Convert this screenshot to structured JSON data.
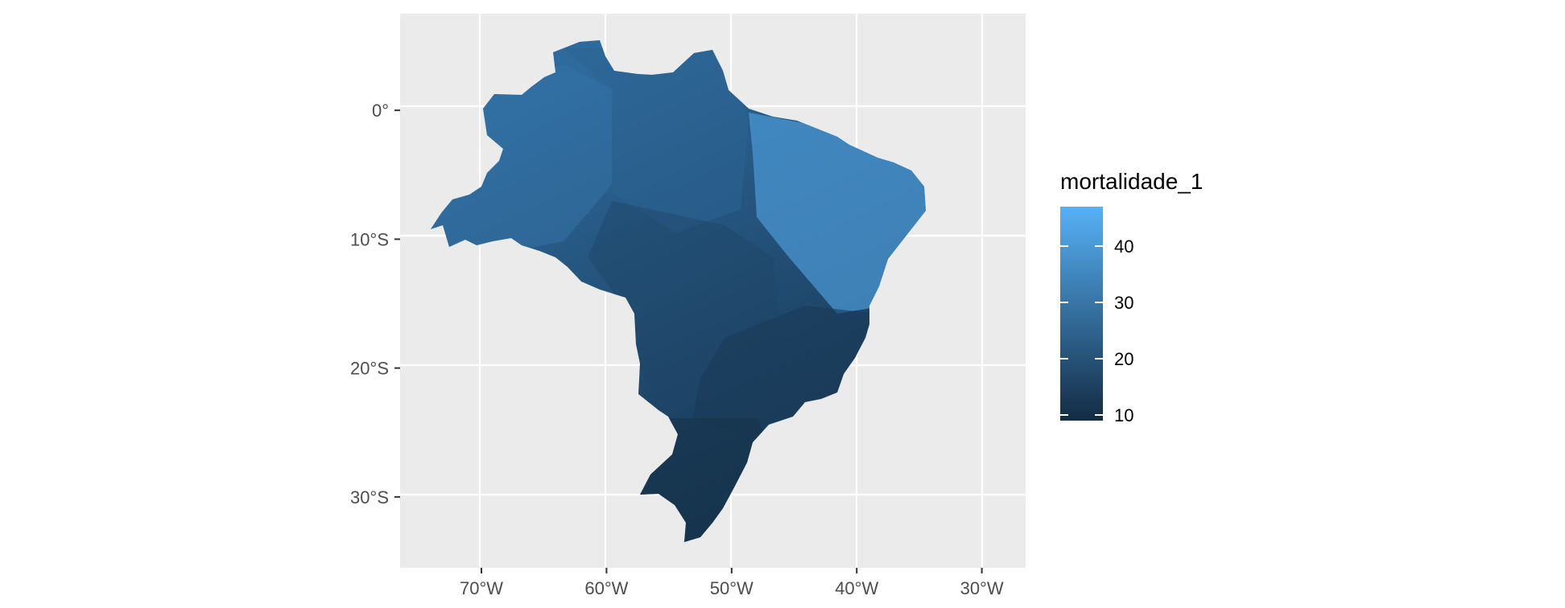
{
  "chart_data": {
    "type": "choropleth",
    "title": "",
    "xlabel": "",
    "ylabel": "",
    "xlim": [
      -76.5,
      -26.5
    ],
    "ylim": [
      -35.5,
      7.5
    ],
    "grid": true,
    "x_ticks": [
      {
        "value": -70,
        "label": "70°W"
      },
      {
        "value": -60,
        "label": "60°W"
      },
      {
        "value": -50,
        "label": "50°W"
      },
      {
        "value": -40,
        "label": "40°W"
      },
      {
        "value": -30,
        "label": "30°W"
      }
    ],
    "y_ticks": [
      {
        "value": 0,
        "label": "0°"
      },
      {
        "value": -10,
        "label": "10°S"
      },
      {
        "value": -20,
        "label": "20°S"
      },
      {
        "value": -30,
        "label": "30°S"
      }
    ],
    "legend": {
      "title": "mortalidade_1",
      "placement": "right",
      "range": [
        9,
        47
      ],
      "breaks": [
        {
          "value": 10,
          "label": "10"
        },
        {
          "value": 20,
          "label": "20"
        },
        {
          "value": 30,
          "label": "30"
        },
        {
          "value": 40,
          "label": "40"
        }
      ],
      "low_color": "#132B43",
      "high_color": "#56B1F7"
    },
    "regions": [
      {
        "name": "north",
        "value": 27
      },
      {
        "name": "northwest",
        "value": 30
      },
      {
        "name": "northeast",
        "value": 37
      },
      {
        "name": "center-west",
        "value": 20
      },
      {
        "name": "southeast",
        "value": 15
      },
      {
        "name": "south",
        "value": 12
      }
    ]
  }
}
